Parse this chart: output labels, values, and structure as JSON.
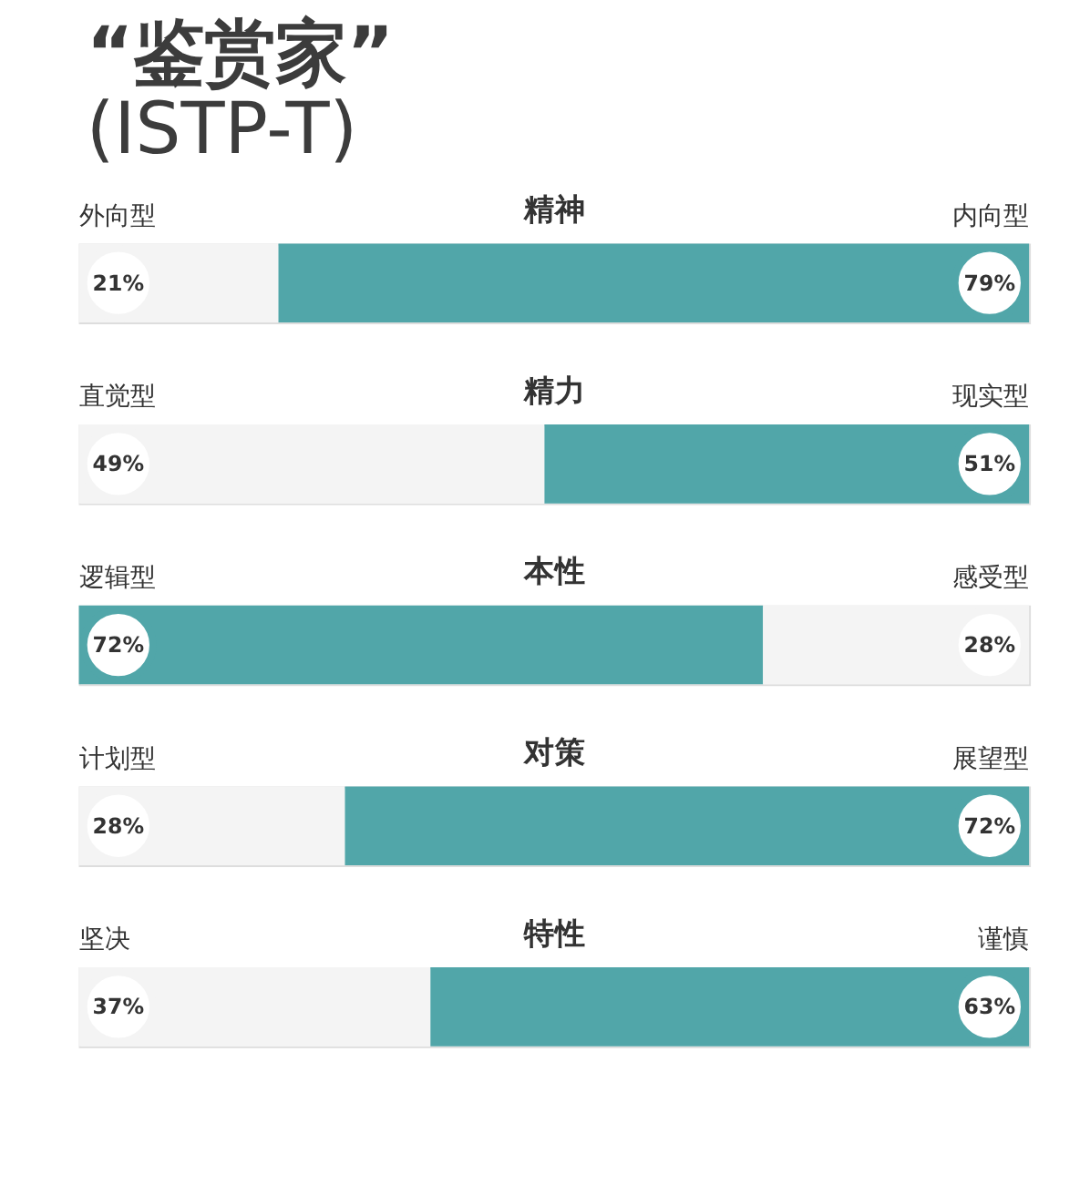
{
  "chart_data": [
    {
      "type": "bar",
      "title": "“鉴赏家”",
      "subtitle": "(ISTP-T)",
      "xlabel": "精神",
      "orientation": "horizontal",
      "stacked": true,
      "categories": [
        null
      ],
      "xlim": [
        0,
        100
      ],
      "series": [
        {
          "name": "外向型",
          "color": "#f4f4f4",
          "values": [
            21
          ],
          "value_labels": [
            "21%"
          ]
        },
        {
          "name": "内向型",
          "color": "#51a6a9",
          "values": [
            79
          ],
          "value_labels": [
            "79%"
          ]
        }
      ]
    },
    {
      "type": "bar",
      "xlabel": "精力",
      "orientation": "horizontal",
      "stacked": true,
      "categories": [
        null
      ],
      "xlim": [
        0,
        100
      ],
      "series": [
        {
          "name": "直觉型",
          "color": "#f4f4f4",
          "values": [
            49
          ],
          "value_labels": [
            "49%"
          ]
        },
        {
          "name": "现实型",
          "color": "#51a6a9",
          "values": [
            51
          ],
          "value_labels": [
            "51%"
          ]
        }
      ]
    },
    {
      "type": "bar",
      "xlabel": "本性",
      "orientation": "horizontal",
      "stacked": true,
      "categories": [
        null
      ],
      "xlim": [
        0,
        100
      ],
      "series": [
        {
          "name": "逻辑型",
          "color": "#51a6a9",
          "values": [
            72
          ],
          "value_labels": [
            "72%"
          ]
        },
        {
          "name": "感受型",
          "color": "#f4f4f4",
          "values": [
            28
          ],
          "value_labels": [
            "28%"
          ]
        }
      ]
    },
    {
      "type": "bar",
      "xlabel": "对策",
      "orientation": "horizontal",
      "stacked": true,
      "categories": [
        null
      ],
      "xlim": [
        0,
        100
      ],
      "series": [
        {
          "name": "计划型",
          "color": "#f4f4f4",
          "values": [
            28
          ],
          "value_labels": [
            "28%"
          ]
        },
        {
          "name": "展望型",
          "color": "#51a6a9",
          "values": [
            72
          ],
          "value_labels": [
            "72%"
          ]
        }
      ]
    },
    {
      "type": "bar",
      "xlabel": "特性",
      "orientation": "horizontal",
      "stacked": true,
      "categories": [
        null
      ],
      "xlim": [
        0,
        100
      ],
      "series": [
        {
          "name": "坚决",
          "color": "#f4f4f4",
          "values": [
            37
          ],
          "value_labels": [
            "37%"
          ]
        },
        {
          "name": "谨慎",
          "color": "#51a6a9",
          "values": [
            63
          ],
          "value_labels": [
            "63%"
          ]
        }
      ]
    }
  ]
}
